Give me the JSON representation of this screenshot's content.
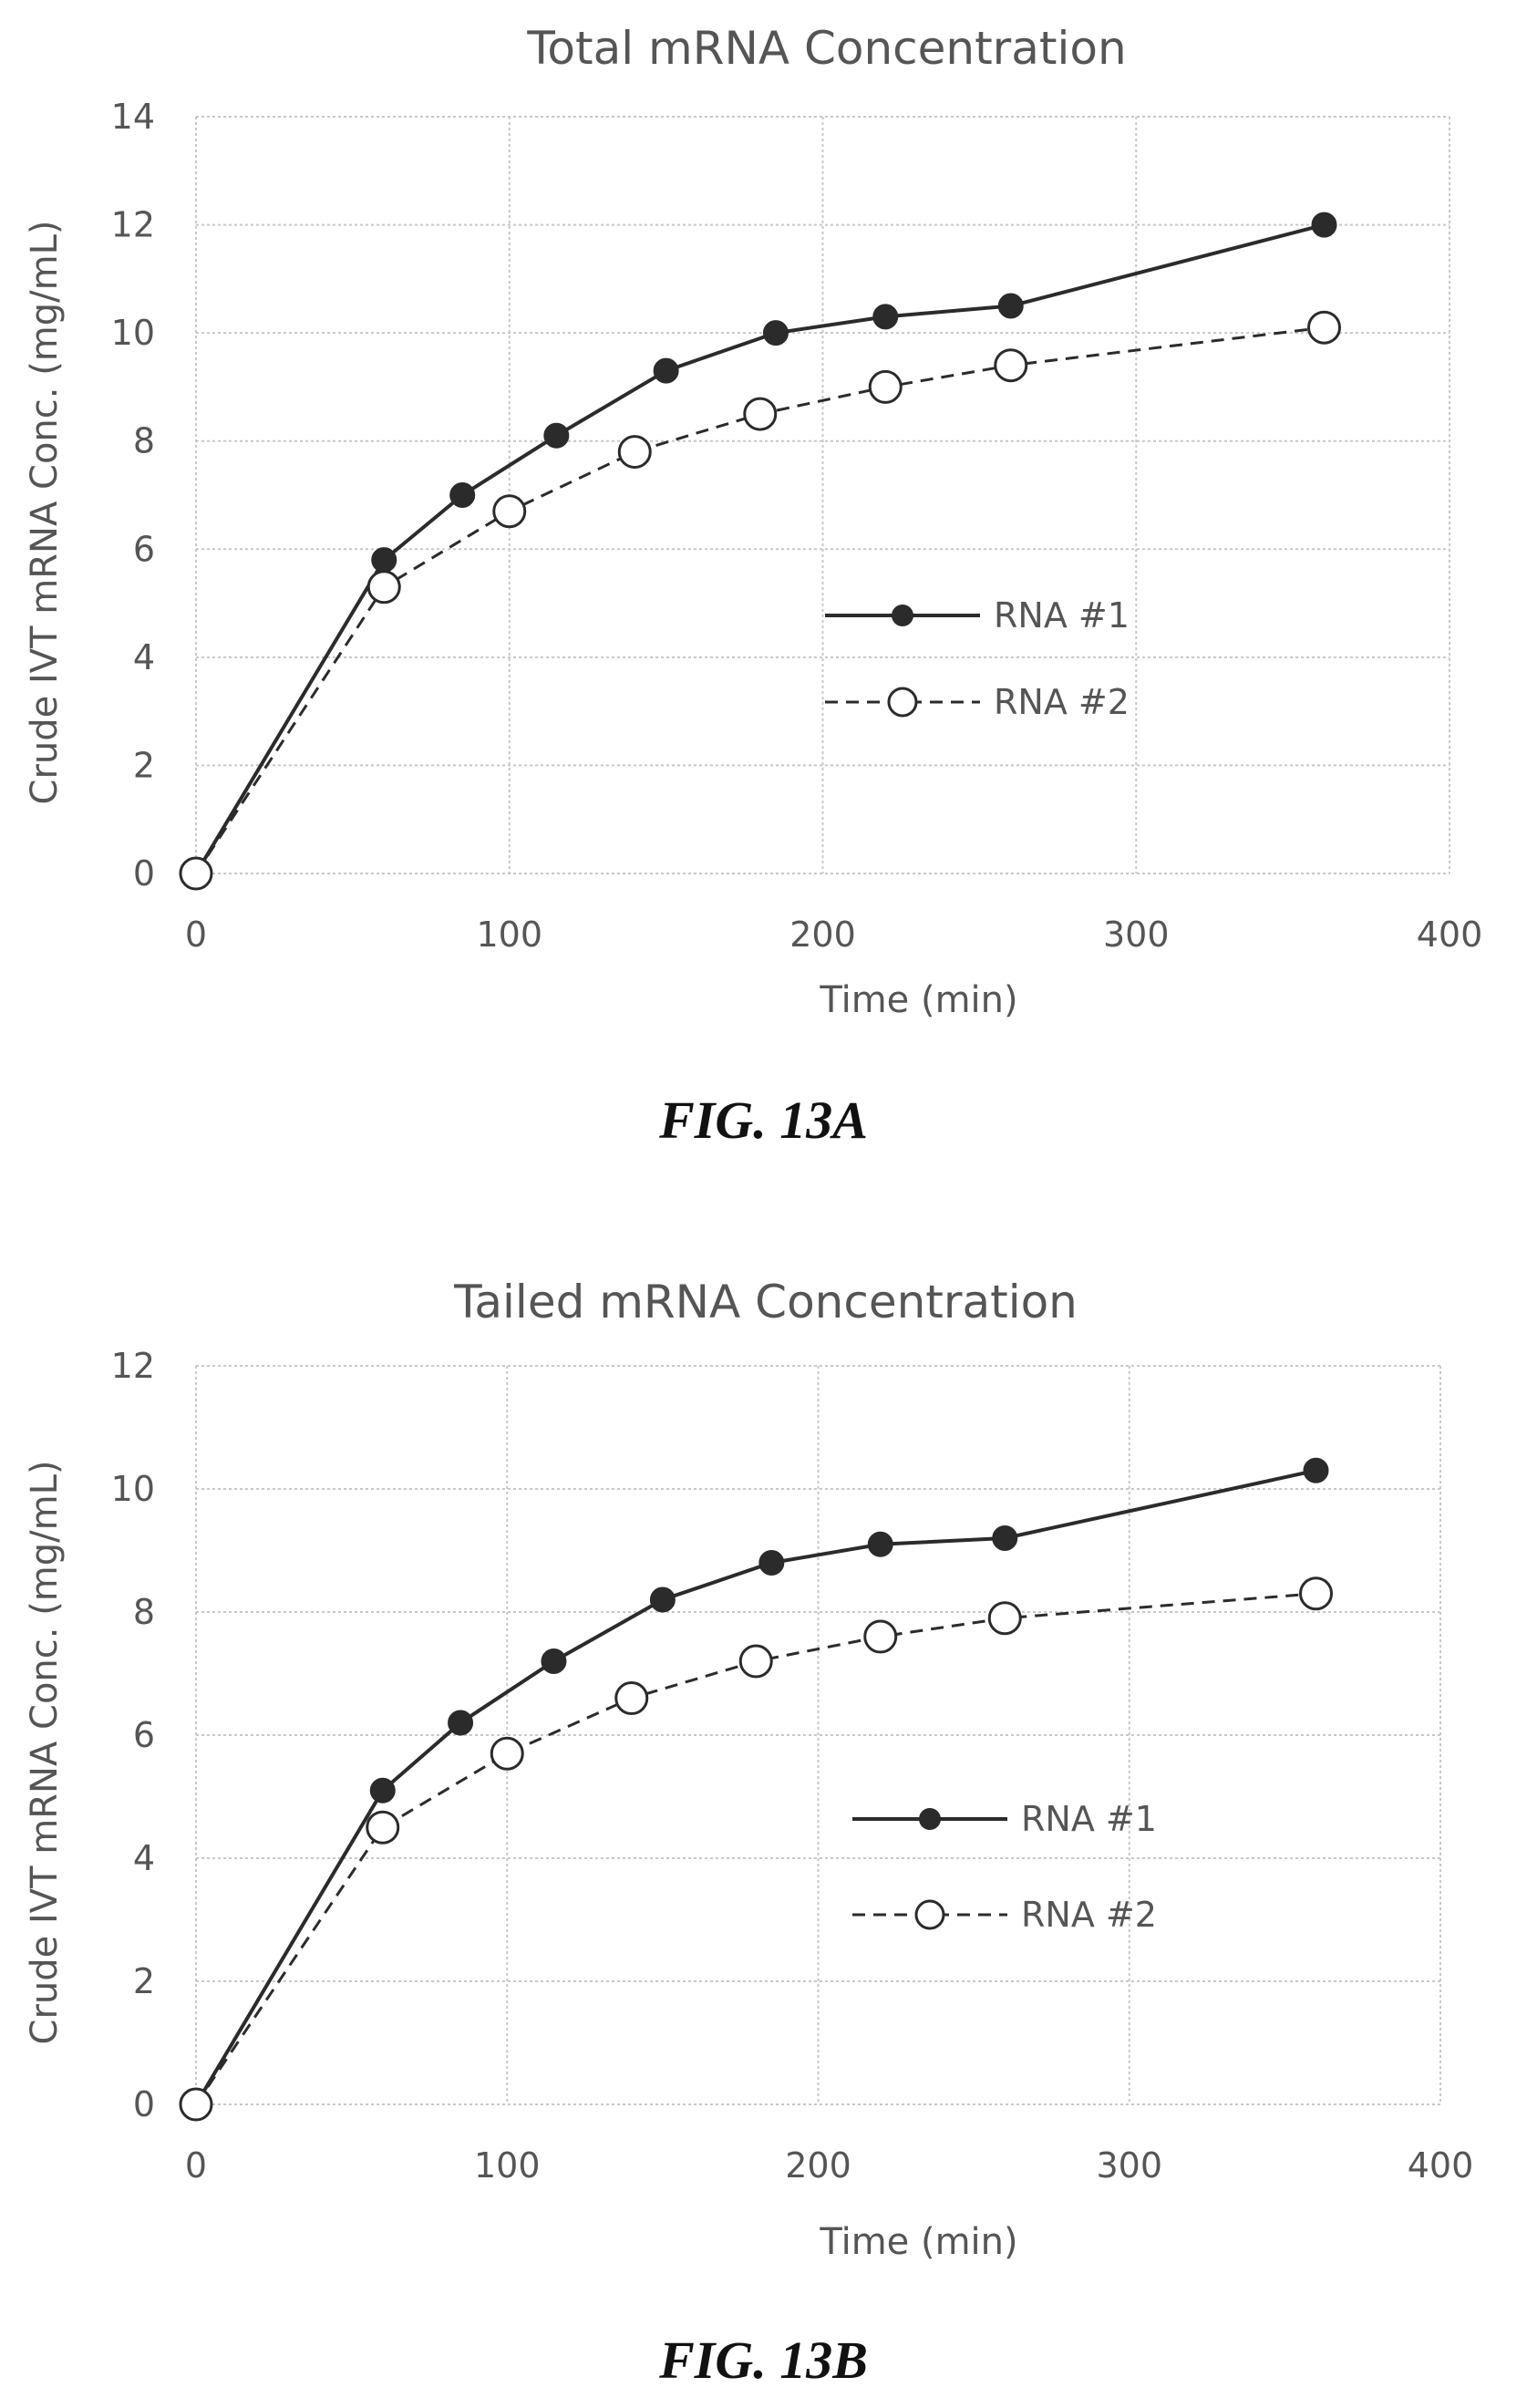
{
  "chart_data": [
    {
      "type": "line",
      "title": "Total mRNA Concentration",
      "xlabel": "Time (min)",
      "ylabel": "Crude IVT mRNA Conc. (mg/mL)",
      "xlim": [
        0,
        400
      ],
      "ylim": [
        0,
        14
      ],
      "xticks": [
        0,
        100,
        200,
        300,
        400
      ],
      "yticks": [
        0,
        2,
        4,
        6,
        8,
        10,
        12,
        14
      ],
      "grid": true,
      "legend_position": "center-right",
      "series": [
        {
          "name": "RNA #1",
          "style": "solid",
          "marker": "filled-circle",
          "x": [
            0,
            60,
            85,
            115,
            150,
            185,
            220,
            260,
            360
          ],
          "y": [
            0,
            5.8,
            7.0,
            8.1,
            9.3,
            10.0,
            10.3,
            10.5,
            12.0
          ]
        },
        {
          "name": "RNA #2",
          "style": "dashed",
          "marker": "hollow-circle",
          "x": [
            0,
            60,
            100,
            140,
            180,
            220,
            260,
            360
          ],
          "y": [
            0,
            5.3,
            6.7,
            7.8,
            8.5,
            9.0,
            9.4,
            10.1
          ]
        }
      ],
      "caption": "FIG. 13A"
    },
    {
      "type": "line",
      "title": "Tailed mRNA Concentration",
      "xlabel": "Time (min)",
      "ylabel": "Crude IVT mRNA Conc. (mg/mL)",
      "xlim": [
        0,
        400
      ],
      "ylim": [
        0,
        12
      ],
      "xticks": [
        0,
        100,
        200,
        300,
        400
      ],
      "yticks": [
        0,
        2,
        4,
        6,
        8,
        10,
        12
      ],
      "grid": true,
      "legend_position": "center-right",
      "series": [
        {
          "name": "RNA #1",
          "style": "solid",
          "marker": "filled-circle",
          "x": [
            0,
            60,
            85,
            115,
            150,
            185,
            220,
            260,
            360
          ],
          "y": [
            0,
            5.1,
            6.2,
            7.2,
            8.2,
            8.8,
            9.1,
            9.2,
            10.3
          ]
        },
        {
          "name": "RNA #2",
          "style": "dashed",
          "marker": "hollow-circle",
          "x": [
            0,
            60,
            100,
            140,
            180,
            220,
            260,
            360
          ],
          "y": [
            0,
            4.5,
            5.7,
            6.6,
            7.2,
            7.6,
            7.9,
            8.3
          ]
        }
      ],
      "caption": "FIG. 13B"
    }
  ],
  "colors": {
    "line": "#2b2b2b",
    "grid": "#c8c8c8",
    "text": "#555555",
    "caption": "#111111"
  }
}
